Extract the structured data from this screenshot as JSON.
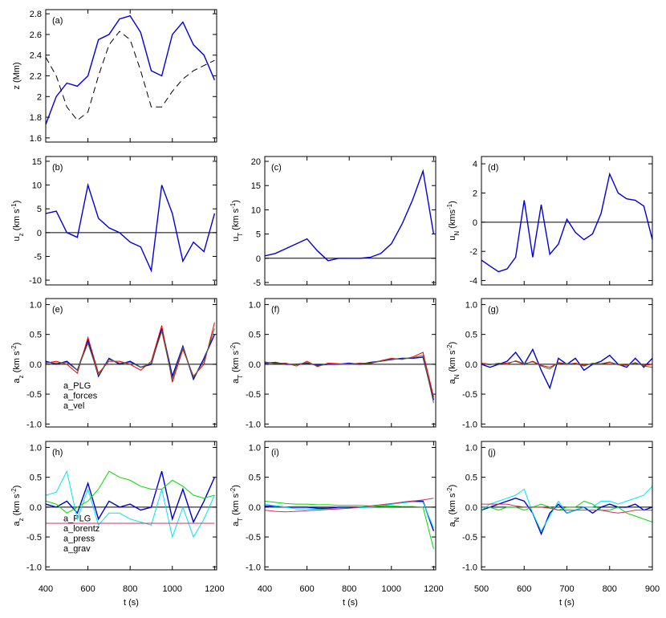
{
  "chart_data": [
    {
      "type": "line",
      "annotation": "(a)",
      "y_label": "z (Mm)",
      "xlim": [
        400,
        1210
      ],
      "xticks": [
        400,
        600,
        800,
        1000,
        1200
      ],
      "ylim": [
        1.56,
        2.84
      ],
      "yticks": [
        1.6,
        1.8,
        2.0,
        2.2,
        2.4,
        2.6,
        2.8
      ],
      "x": [
        400,
        450,
        500,
        550,
        600,
        650,
        700,
        750,
        800,
        850,
        900,
        950,
        1000,
        1050,
        1100,
        1150,
        1200
      ],
      "series": [
        {
          "color": "#0000dd",
          "values": [
            1.73,
            2.0,
            2.13,
            2.1,
            2.2,
            2.55,
            2.6,
            2.75,
            2.78,
            2.62,
            2.25,
            2.2,
            2.6,
            2.72,
            2.5,
            2.4,
            2.16
          ]
        },
        {
          "color": "#000000",
          "dash": true,
          "values": [
            2.38,
            2.2,
            1.9,
            1.77,
            1.85,
            2.2,
            2.5,
            2.63,
            2.55,
            2.25,
            1.9,
            1.9,
            2.05,
            2.17,
            2.25,
            2.3,
            2.35
          ]
        }
      ]
    },
    {
      "type": "line",
      "annotation": "(b)",
      "y_label": "u_z (km s^-1)",
      "xlim": [
        400,
        1210
      ],
      "xticks": [
        400,
        600,
        800,
        1000,
        1200
      ],
      "ylim": [
        -11,
        16
      ],
      "yticks": [
        -10,
        -5,
        0,
        5,
        10,
        15
      ],
      "reference_line": 0,
      "x": [
        400,
        450,
        500,
        550,
        600,
        650,
        700,
        750,
        800,
        850,
        900,
        950,
        1000,
        1050,
        1100,
        1150,
        1200
      ],
      "series": [
        {
          "color": "#0000dd",
          "values": [
            4,
            4.5,
            0,
            -1,
            10,
            3,
            1,
            0,
            -2,
            -3,
            -8,
            10,
            4,
            -6,
            -2,
            -4,
            4
          ]
        }
      ]
    },
    {
      "type": "line",
      "annotation": "(c)",
      "y_label": "u_T (km s^-1)",
      "xlim": [
        400,
        1210
      ],
      "xticks": [
        400,
        600,
        800,
        1000,
        1200
      ],
      "ylim": [
        -5.5,
        21
      ],
      "yticks": [
        -5,
        0,
        5,
        10,
        15,
        20
      ],
      "reference_line": 0,
      "x": [
        400,
        450,
        500,
        550,
        600,
        650,
        700,
        750,
        800,
        850,
        900,
        950,
        1000,
        1050,
        1100,
        1150,
        1200
      ],
      "series": [
        {
          "color": "#0000dd",
          "values": [
            0.5,
            1,
            2,
            3,
            4,
            1.5,
            -0.5,
            0,
            0,
            0,
            0.2,
            1,
            3,
            7,
            12,
            18,
            5
          ]
        }
      ]
    },
    {
      "type": "line",
      "annotation": "(d)",
      "y_label": "u_N (kms^-1)",
      "xlim": [
        500,
        900
      ],
      "xticks": [
        500,
        600,
        700,
        800,
        900
      ],
      "ylim": [
        -4.3,
        4.5
      ],
      "yticks": [
        -4,
        -2,
        0,
        2,
        4
      ],
      "reference_line": 0,
      "x": [
        500,
        520,
        540,
        560,
        580,
        600,
        620,
        640,
        660,
        680,
        700,
        720,
        740,
        760,
        780,
        800,
        820,
        840,
        860,
        880,
        900
      ],
      "series": [
        {
          "color": "#0000dd",
          "values": [
            -2.6,
            -3.0,
            -3.4,
            -3.2,
            -2.4,
            1.5,
            -2.4,
            1.2,
            -2.2,
            -1.5,
            0.2,
            -0.7,
            -1.2,
            -0.8,
            0.6,
            3.3,
            2.0,
            1.6,
            1.5,
            1.1,
            -1.2
          ]
        }
      ]
    },
    {
      "type": "line",
      "annotation": "(e)",
      "y_label": "a_z (km s^-2)",
      "xlim": [
        400,
        1210
      ],
      "xticks": [
        400,
        600,
        800,
        1000,
        1200
      ],
      "ylim": [
        -1.05,
        1.1
      ],
      "yticks": [
        {
          "value": -1,
          "label": "-1.0"
        },
        -0.5,
        {
          "value": 0,
          "label": "0.0"
        },
        0.5,
        {
          "value": 1,
          "label": "1.0"
        }
      ],
      "reference_line": 0,
      "x": [
        400,
        450,
        500,
        550,
        600,
        650,
        700,
        750,
        800,
        850,
        900,
        950,
        1000,
        1050,
        1100,
        1150,
        1200
      ],
      "series": [
        {
          "name": "a_PLG",
          "color": "#0000dd",
          "values": [
            0.05,
            0.0,
            0.05,
            -0.1,
            0.4,
            -0.2,
            0.1,
            0.0,
            0.05,
            -0.05,
            0.0,
            0.6,
            -0.2,
            0.3,
            -0.25,
            0.1,
            0.5
          ]
        },
        {
          "name": "a_forces",
          "color": "#ee0000",
          "values": [
            0.02,
            0.05,
            0.0,
            -0.15,
            0.45,
            -0.15,
            0.05,
            0.05,
            0.0,
            -0.1,
            0.05,
            0.65,
            -0.3,
            0.25,
            -0.2,
            0.0,
            0.7
          ]
        },
        {
          "name": "a_vel",
          "color": "#556b2f",
          "values": [
            0.03,
            0.02,
            0.03,
            -0.1,
            0.35,
            -0.18,
            0.08,
            0.02,
            0.03,
            -0.05,
            0.02,
            0.55,
            -0.25,
            0.28,
            -0.22,
            0.05,
            0.6
          ]
        }
      ]
    },
    {
      "type": "line",
      "annotation": "(f)",
      "y_label": "a_T (km s^-2)",
      "xlim": [
        400,
        1210
      ],
      "xticks": [
        400,
        600,
        800,
        1000,
        1200
      ],
      "ylim": [
        -1.05,
        1.1
      ],
      "yticks": [
        {
          "value": -1,
          "label": "-1.0"
        },
        -0.5,
        {
          "value": 0,
          "label": "0.0"
        },
        0.5,
        {
          "value": 1,
          "label": "1.0"
        }
      ],
      "reference_line": 0,
      "x": [
        400,
        450,
        500,
        550,
        600,
        650,
        700,
        750,
        800,
        850,
        900,
        950,
        1000,
        1050,
        1100,
        1150,
        1200
      ],
      "series": [
        {
          "color": "#0000dd",
          "values": [
            0.02,
            0.03,
            0.0,
            0.0,
            0.02,
            -0.02,
            0.0,
            0.0,
            0.02,
            0.0,
            0.03,
            0.05,
            0.08,
            0.1,
            0.1,
            0.12,
            -0.6
          ]
        },
        {
          "color": "#ee0000",
          "values": [
            0.04,
            0.01,
            0.02,
            -0.03,
            0.05,
            -0.04,
            0.02,
            0.01,
            0.0,
            0.02,
            0.01,
            0.06,
            0.1,
            0.08,
            0.12,
            0.2,
            -0.55
          ]
        },
        {
          "color": "#556b2f",
          "values": [
            0.03,
            0.02,
            0.01,
            -0.01,
            0.03,
            -0.03,
            0.01,
            0.0,
            0.01,
            0.01,
            0.02,
            0.05,
            0.09,
            0.09,
            0.11,
            0.15,
            -0.65
          ]
        }
      ]
    },
    {
      "type": "line",
      "annotation": "(g)",
      "y_label": "a_N (km s^-2)",
      "xlim": [
        500,
        900
      ],
      "xticks": [
        500,
        600,
        700,
        800,
        900
      ],
      "ylim": [
        -1.05,
        1.1
      ],
      "yticks": [
        {
          "value": -1,
          "label": "-1.0"
        },
        -0.5,
        {
          "value": 0,
          "label": "0.0"
        },
        0.5,
        {
          "value": 1,
          "label": "1.0"
        }
      ],
      "reference_line": 0,
      "x": [
        500,
        520,
        540,
        560,
        580,
        600,
        620,
        640,
        660,
        680,
        700,
        720,
        740,
        760,
        780,
        800,
        820,
        840,
        860,
        880,
        900
      ],
      "series": [
        {
          "color": "#0000dd",
          "values": [
            0.0,
            -0.05,
            0.0,
            0.05,
            0.2,
            0.0,
            0.25,
            -0.1,
            -0.4,
            0.1,
            0.0,
            0.1,
            -0.1,
            0.0,
            0.05,
            0.15,
            0.0,
            -0.05,
            0.1,
            -0.05,
            0.1
          ]
        },
        {
          "color": "#ee0000",
          "values": [
            0.02,
            0.0,
            0.01,
            0.02,
            0.05,
            0.0,
            0.05,
            -0.02,
            -0.05,
            0.02,
            0.0,
            0.02,
            -0.02,
            0.01,
            0.0,
            0.03,
            0.0,
            -0.01,
            0.02,
            -0.02,
            0.0
          ]
        },
        {
          "color": "#556b2f",
          "values": [
            0.01,
            -0.01,
            0.02,
            0.0,
            0.06,
            0.01,
            0.04,
            -0.03,
            -0.08,
            0.03,
            0.01,
            0.01,
            -0.03,
            0.02,
            0.01,
            0.04,
            -0.01,
            -0.02,
            0.03,
            -0.03,
            -0.05
          ]
        }
      ]
    },
    {
      "type": "line",
      "annotation": "(h)",
      "y_label": "a_z (km s^-2)",
      "x_label": "t (s)",
      "show_xtick_labels": true,
      "xlim": [
        400,
        1210
      ],
      "xticks": [
        400,
        600,
        800,
        1000,
        1200
      ],
      "ylim": [
        -1.05,
        1.1
      ],
      "yticks": [
        {
          "value": -1,
          "label": "-1.0"
        },
        -0.5,
        {
          "value": 0,
          "label": "0.0"
        },
        0.5,
        {
          "value": 1,
          "label": "1.0"
        }
      ],
      "reference_line": 0,
      "x": [
        400,
        450,
        500,
        550,
        600,
        650,
        700,
        750,
        800,
        850,
        900,
        950,
        1000,
        1050,
        1100,
        1150,
        1200
      ],
      "series": [
        {
          "name": "a_PLG",
          "color": "#0000cc",
          "values": [
            0.05,
            0.0,
            0.1,
            -0.1,
            0.4,
            -0.2,
            0.1,
            0.0,
            0.05,
            -0.05,
            0.0,
            0.6,
            -0.2,
            0.3,
            -0.25,
            0.1,
            0.5
          ]
        },
        {
          "name": "a_lorentz",
          "color": "#00e5ee",
          "values": [
            0.2,
            0.25,
            0.6,
            -0.2,
            0.3,
            -0.3,
            -0.1,
            -0.1,
            -0.2,
            -0.25,
            -0.3,
            0.3,
            -0.5,
            0.0,
            -0.5,
            -0.2,
            0.2
          ]
        },
        {
          "name": "a_press",
          "color": "#00dd00",
          "values": [
            0.1,
            0.05,
            -0.1,
            0.0,
            0.1,
            0.3,
            0.6,
            0.5,
            0.45,
            0.35,
            0.3,
            0.3,
            0.45,
            0.35,
            0.2,
            0.15,
            0.2
          ]
        },
        {
          "name": "a_grav",
          "color": "#cc3366",
          "values": [
            -0.27,
            -0.27,
            -0.27,
            -0.27,
            -0.27,
            -0.27,
            -0.27,
            -0.27,
            -0.27,
            -0.27,
            -0.27,
            -0.27,
            -0.27,
            -0.27,
            -0.27,
            -0.27,
            -0.27
          ]
        }
      ]
    },
    {
      "type": "line",
      "annotation": "(i)",
      "y_label": "a_T (km s^-2)",
      "x_label": "t (s)",
      "show_xtick_labels": true,
      "xlim": [
        400,
        1210
      ],
      "xticks": [
        400,
        600,
        800,
        1000,
        1200
      ],
      "ylim": [
        -1.05,
        1.1
      ],
      "yticks": [
        {
          "value": -1,
          "label": "-1.0"
        },
        -0.5,
        {
          "value": 0,
          "label": "0.0"
        },
        0.5,
        {
          "value": 1,
          "label": "1.0"
        }
      ],
      "reference_line": 0,
      "x": [
        400,
        450,
        500,
        550,
        600,
        650,
        700,
        750,
        800,
        850,
        900,
        950,
        1000,
        1050,
        1100,
        1150,
        1200
      ],
      "series": [
        {
          "color": "#0000cc",
          "values": [
            0.02,
            0.02,
            0.0,
            0.0,
            0.0,
            -0.02,
            -0.02,
            0.0,
            0.0,
            0.0,
            0.0,
            0.02,
            0.05,
            0.08,
            0.1,
            0.1,
            -0.4
          ]
        },
        {
          "color": "#00e5ee",
          "values": [
            0.05,
            0.02,
            0.0,
            -0.03,
            -0.03,
            -0.04,
            -0.03,
            -0.02,
            -0.02,
            -0.01,
            0.0,
            0.02,
            0.05,
            0.07,
            0.09,
            0.08,
            -0.35
          ]
        },
        {
          "color": "#00dd00",
          "values": [
            0.1,
            0.08,
            0.06,
            0.05,
            0.05,
            0.04,
            0.04,
            0.03,
            0.03,
            0.03,
            0.02,
            0.02,
            0.02,
            0.01,
            0.01,
            0.0,
            -0.7
          ]
        },
        {
          "color": "#cc3366",
          "values": [
            -0.05,
            -0.07,
            -0.08,
            -0.07,
            -0.06,
            -0.05,
            -0.04,
            -0.03,
            -0.02,
            0.0,
            0.02,
            0.04,
            0.06,
            0.08,
            0.1,
            0.12,
            0.15
          ]
        }
      ]
    },
    {
      "type": "line",
      "annotation": "(j)",
      "y_label": "a_N (km s^-2)",
      "x_label": "t (s)",
      "show_xtick_labels": true,
      "xlim": [
        500,
        900
      ],
      "xticks": [
        500,
        600,
        700,
        800,
        900
      ],
      "ylim": [
        -1.05,
        1.1
      ],
      "yticks": [
        {
          "value": -1,
          "label": "-1.0"
        },
        -0.5,
        {
          "value": 0,
          "label": "0.0"
        },
        0.5,
        {
          "value": 1,
          "label": "1.0"
        }
      ],
      "reference_line": 0,
      "x": [
        500,
        520,
        540,
        560,
        580,
        600,
        620,
        640,
        660,
        680,
        700,
        720,
        740,
        760,
        780,
        800,
        820,
        840,
        860,
        880,
        900
      ],
      "series": [
        {
          "color": "#0000cc",
          "values": [
            -0.05,
            0.0,
            0.05,
            0.1,
            0.15,
            0.1,
            -0.1,
            -0.45,
            -0.1,
            0.05,
            -0.1,
            -0.05,
            0.0,
            -0.1,
            0.0,
            0.05,
            0.0,
            0.0,
            0.05,
            -0.05,
            0.0
          ]
        },
        {
          "color": "#00e5ee",
          "values": [
            -0.05,
            0.05,
            0.1,
            0.15,
            0.2,
            0.3,
            -0.1,
            -0.4,
            -0.15,
            0.1,
            -0.1,
            -0.05,
            0.0,
            0.0,
            0.1,
            0.1,
            0.05,
            0.1,
            0.15,
            0.2,
            0.35
          ]
        },
        {
          "color": "#00dd00",
          "values": [
            0.0,
            0.0,
            -0.05,
            0.0,
            0.0,
            -0.05,
            0.0,
            0.05,
            0.0,
            -0.05,
            0.0,
            0.0,
            0.1,
            0.05,
            -0.05,
            -0.05,
            0.0,
            -0.1,
            -0.15,
            -0.2,
            -0.25
          ]
        },
        {
          "color": "#cc3366",
          "values": [
            0.05,
            0.05,
            0.05,
            0.05,
            0.02,
            0.0,
            0.0,
            0.0,
            -0.02,
            -0.05,
            -0.05,
            -0.05,
            -0.05,
            -0.05,
            -0.05,
            -0.08,
            -0.1,
            -0.08,
            -0.05,
            -0.05,
            -0.05
          ]
        }
      ]
    }
  ]
}
